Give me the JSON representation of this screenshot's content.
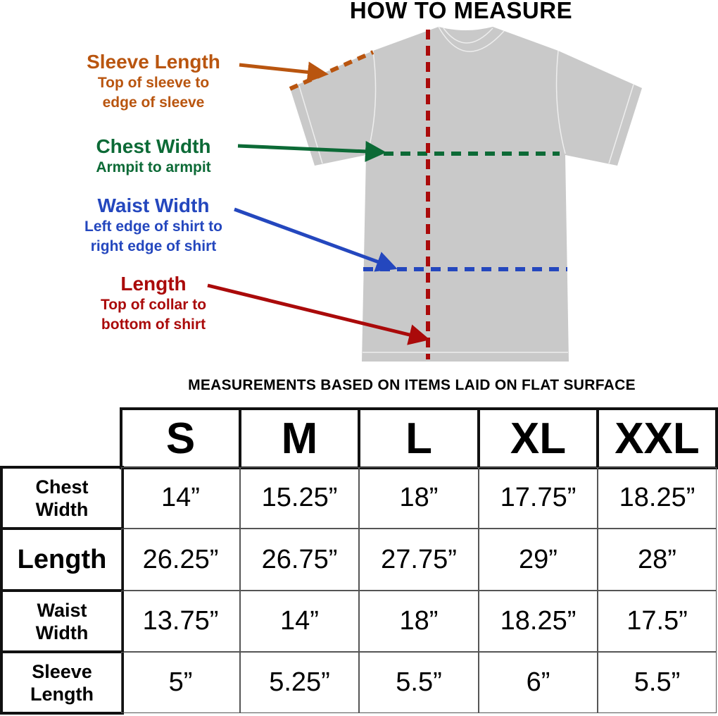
{
  "title": "HOW TO MEASURE",
  "callouts": [
    {
      "heading": "Sleeve Length",
      "line1": "Top of sleeve to",
      "line2": "edge of sleeve",
      "color": "#b9550f"
    },
    {
      "heading": "Chest Width",
      "line1": "Armpit to armpit",
      "line2": "",
      "color": "#0c6a36"
    },
    {
      "heading": "Waist Width",
      "line1": "Left edge of shirt to",
      "line2": "right edge of shirt",
      "color": "#2447be"
    },
    {
      "heading": "Length",
      "line1": "Top of collar to",
      "line2": "bottom of shirt",
      "color": "#aa0a0a"
    }
  ],
  "subtitle": "MEASUREMENTS BASED ON ITEMS LAID ON FLAT SURFACE",
  "table": {
    "sizes": [
      "S",
      "M",
      "L",
      "XL",
      "XXL"
    ],
    "rows": [
      {
        "label1": "Chest",
        "label2": "Width",
        "values": [
          "14”",
          "15.25”",
          "18”",
          "17.75”",
          "18.25”"
        ]
      },
      {
        "label1": "Length",
        "label2": "",
        "values": [
          "26.25”",
          "26.75”",
          "27.75”",
          "29”",
          "28”"
        ]
      },
      {
        "label1": "Waist",
        "label2": "Width",
        "values": [
          "13.75”",
          "14”",
          "18”",
          "18.25”",
          "17.5”"
        ]
      },
      {
        "label1": "Sleeve",
        "label2": "Length",
        "values": [
          "5”",
          "5.25”",
          "5.5”",
          "6”",
          "5.5”"
        ]
      }
    ]
  }
}
